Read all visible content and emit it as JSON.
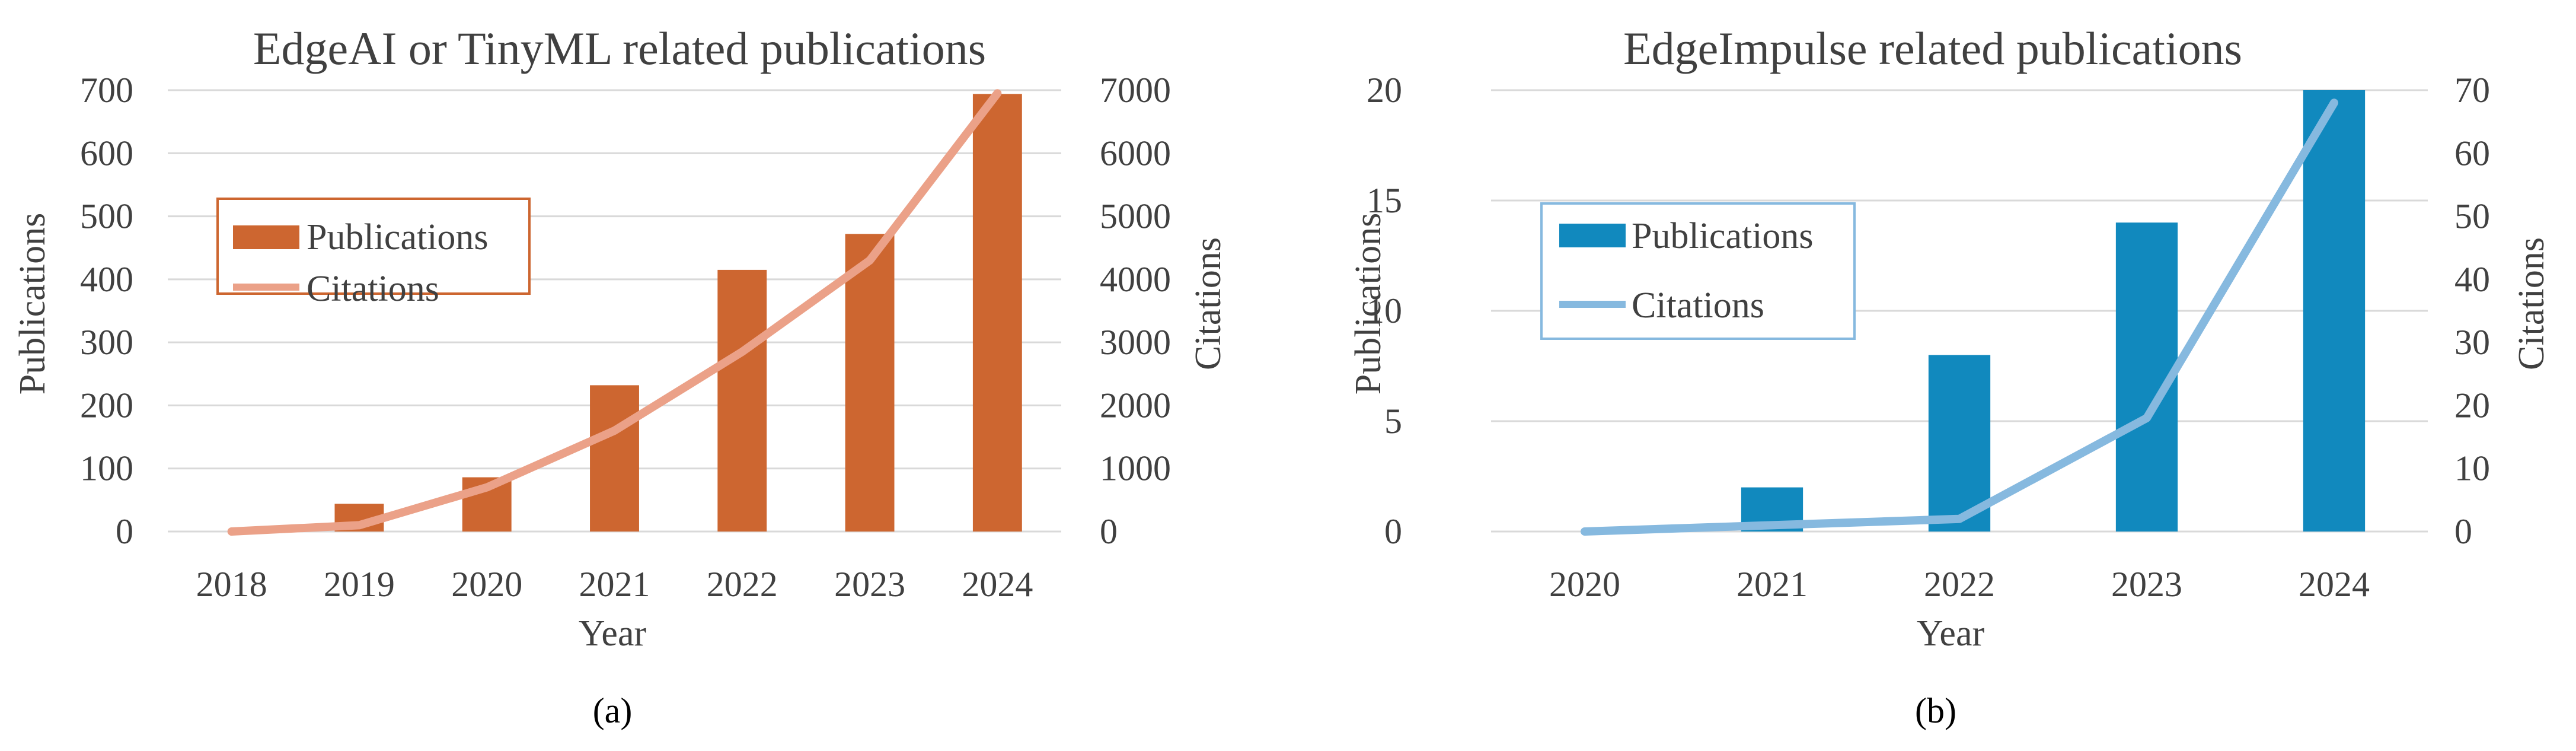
{
  "chart_data": [
    {
      "type": "bar",
      "title": "EdgeAI or TinyML related publications",
      "xlabel": "Year",
      "ylabel": "Publications",
      "y2label": "Citations",
      "categories": [
        "2018",
        "2019",
        "2020",
        "2021",
        "2022",
        "2023",
        "2024"
      ],
      "ylim": [
        0,
        700
      ],
      "y2lim": [
        0,
        7000
      ],
      "yticks": [
        "0",
        "100",
        "200",
        "300",
        "400",
        "500",
        "600",
        "700"
      ],
      "y2ticks": [
        "0",
        "1000",
        "2000",
        "3000",
        "4000",
        "5000",
        "6000",
        "7000"
      ],
      "series": [
        {
          "name": "Publications",
          "kind": "bar",
          "axis": "left",
          "color": "#CD6630",
          "values": [
            0,
            44,
            86,
            232,
            415,
            472,
            694
          ]
        },
        {
          "name": "Citations",
          "kind": "line",
          "axis": "right",
          "color": "#EBA188",
          "values": [
            0,
            100,
            700,
            1600,
            2850,
            4300,
            6950
          ]
        }
      ],
      "grid": true,
      "legend": "left"
    },
    {
      "type": "bar",
      "title": "EdgeImpulse related publications",
      "xlabel": "Year",
      "ylabel": "Publications",
      "y2label": "Citations",
      "categories": [
        "2020",
        "2021",
        "2022",
        "2023",
        "2024"
      ],
      "ylim": [
        0,
        20
      ],
      "y2lim": [
        0,
        70
      ],
      "yticks": [
        "0",
        "5",
        "10",
        "15",
        "20"
      ],
      "y2ticks": [
        "0",
        "10",
        "20",
        "30",
        "40",
        "50",
        "60",
        "70"
      ],
      "series": [
        {
          "name": "Publications",
          "kind": "bar",
          "axis": "left",
          "color": "#1189BE",
          "values": [
            0,
            2,
            8,
            14,
            20
          ]
        },
        {
          "name": "Citations",
          "kind": "line",
          "axis": "right",
          "color": "#86B9DF",
          "values": [
            0,
            1,
            2,
            18,
            68
          ]
        }
      ],
      "grid": true,
      "legend": "left"
    }
  ],
  "captions": [
    "(a)",
    "(b)"
  ]
}
